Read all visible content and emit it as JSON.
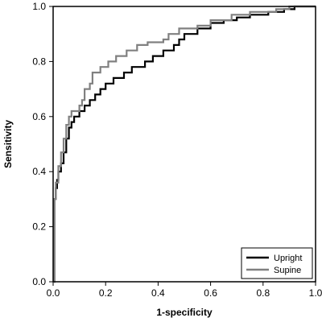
{
  "chart_data": {
    "type": "line",
    "title": "",
    "xlabel": "1-specificity",
    "ylabel": "Sensitivity",
    "xlim": [
      0,
      1
    ],
    "ylim": [
      0,
      1
    ],
    "x_ticks": [
      "0.0",
      "0.2",
      "0.4",
      "0.6",
      "0.8",
      "1.0"
    ],
    "y_ticks": [
      "0.0",
      "0.2",
      "0.4",
      "0.6",
      "0.8",
      "1.0"
    ],
    "grid": false,
    "legend_position": "bottom-right",
    "series": [
      {
        "name": "Upright",
        "color": "#000000",
        "points": [
          [
            0.0,
            0.0
          ],
          [
            0.005,
            0.0
          ],
          [
            0.005,
            0.3
          ],
          [
            0.01,
            0.3
          ],
          [
            0.01,
            0.34
          ],
          [
            0.015,
            0.34
          ],
          [
            0.015,
            0.37
          ],
          [
            0.02,
            0.37
          ],
          [
            0.02,
            0.4
          ],
          [
            0.03,
            0.4
          ],
          [
            0.03,
            0.43
          ],
          [
            0.04,
            0.43
          ],
          [
            0.04,
            0.47
          ],
          [
            0.05,
            0.47
          ],
          [
            0.05,
            0.52
          ],
          [
            0.06,
            0.52
          ],
          [
            0.06,
            0.56
          ],
          [
            0.07,
            0.56
          ],
          [
            0.07,
            0.58
          ],
          [
            0.08,
            0.58
          ],
          [
            0.08,
            0.6
          ],
          [
            0.1,
            0.6
          ],
          [
            0.1,
            0.62
          ],
          [
            0.12,
            0.62
          ],
          [
            0.12,
            0.64
          ],
          [
            0.14,
            0.64
          ],
          [
            0.14,
            0.66
          ],
          [
            0.16,
            0.66
          ],
          [
            0.16,
            0.68
          ],
          [
            0.18,
            0.68
          ],
          [
            0.18,
            0.7
          ],
          [
            0.2,
            0.7
          ],
          [
            0.2,
            0.72
          ],
          [
            0.23,
            0.72
          ],
          [
            0.23,
            0.74
          ],
          [
            0.27,
            0.74
          ],
          [
            0.27,
            0.76
          ],
          [
            0.3,
            0.76
          ],
          [
            0.3,
            0.78
          ],
          [
            0.35,
            0.78
          ],
          [
            0.35,
            0.8
          ],
          [
            0.38,
            0.8
          ],
          [
            0.38,
            0.82
          ],
          [
            0.42,
            0.82
          ],
          [
            0.42,
            0.84
          ],
          [
            0.46,
            0.84
          ],
          [
            0.46,
            0.86
          ],
          [
            0.48,
            0.86
          ],
          [
            0.48,
            0.88
          ],
          [
            0.5,
            0.88
          ],
          [
            0.5,
            0.9
          ],
          [
            0.55,
            0.9
          ],
          [
            0.55,
            0.92
          ],
          [
            0.6,
            0.92
          ],
          [
            0.6,
            0.94
          ],
          [
            0.65,
            0.94
          ],
          [
            0.65,
            0.95
          ],
          [
            0.7,
            0.95
          ],
          [
            0.7,
            0.96
          ],
          [
            0.75,
            0.96
          ],
          [
            0.75,
            0.97
          ],
          [
            0.82,
            0.97
          ],
          [
            0.82,
            0.98
          ],
          [
            0.88,
            0.98
          ],
          [
            0.88,
            0.99
          ],
          [
            0.92,
            0.99
          ],
          [
            0.92,
            1.0
          ],
          [
            1.0,
            1.0
          ]
        ]
      },
      {
        "name": "Supine",
        "color": "#808080",
        "points": [
          [
            0.0,
            0.0
          ],
          [
            0.005,
            0.0
          ],
          [
            0.005,
            0.3
          ],
          [
            0.01,
            0.3
          ],
          [
            0.01,
            0.36
          ],
          [
            0.02,
            0.36
          ],
          [
            0.02,
            0.42
          ],
          [
            0.03,
            0.42
          ],
          [
            0.03,
            0.47
          ],
          [
            0.04,
            0.47
          ],
          [
            0.04,
            0.52
          ],
          [
            0.05,
            0.52
          ],
          [
            0.05,
            0.57
          ],
          [
            0.06,
            0.57
          ],
          [
            0.06,
            0.6
          ],
          [
            0.07,
            0.6
          ],
          [
            0.07,
            0.62
          ],
          [
            0.1,
            0.62
          ],
          [
            0.1,
            0.64
          ],
          [
            0.11,
            0.64
          ],
          [
            0.11,
            0.66
          ],
          [
            0.12,
            0.66
          ],
          [
            0.12,
            0.7
          ],
          [
            0.14,
            0.7
          ],
          [
            0.14,
            0.72
          ],
          [
            0.15,
            0.72
          ],
          [
            0.15,
            0.76
          ],
          [
            0.18,
            0.76
          ],
          [
            0.18,
            0.78
          ],
          [
            0.21,
            0.78
          ],
          [
            0.21,
            0.8
          ],
          [
            0.24,
            0.8
          ],
          [
            0.24,
            0.82
          ],
          [
            0.28,
            0.82
          ],
          [
            0.28,
            0.84
          ],
          [
            0.32,
            0.84
          ],
          [
            0.32,
            0.86
          ],
          [
            0.36,
            0.86
          ],
          [
            0.36,
            0.87
          ],
          [
            0.42,
            0.87
          ],
          [
            0.42,
            0.88
          ],
          [
            0.44,
            0.88
          ],
          [
            0.44,
            0.9
          ],
          [
            0.48,
            0.9
          ],
          [
            0.48,
            0.92
          ],
          [
            0.55,
            0.92
          ],
          [
            0.55,
            0.93
          ],
          [
            0.6,
            0.93
          ],
          [
            0.6,
            0.95
          ],
          [
            0.68,
            0.95
          ],
          [
            0.68,
            0.97
          ],
          [
            0.75,
            0.97
          ],
          [
            0.75,
            0.98
          ],
          [
            0.85,
            0.98
          ],
          [
            0.85,
            0.99
          ],
          [
            0.9,
            0.99
          ],
          [
            0.9,
            1.0
          ],
          [
            1.0,
            1.0
          ]
        ]
      }
    ]
  }
}
